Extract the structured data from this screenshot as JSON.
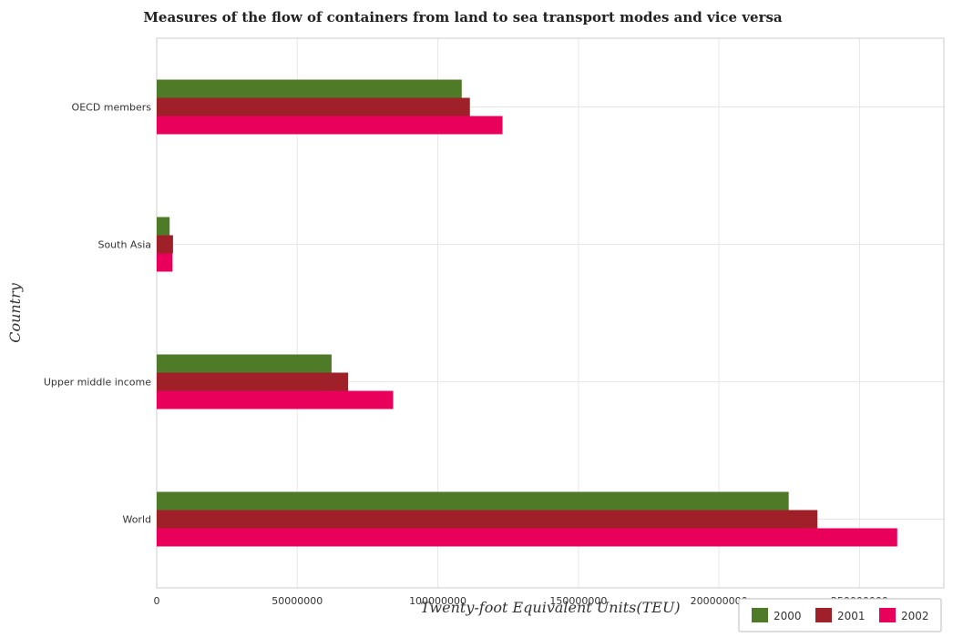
{
  "chart_data": {
    "type": "bar",
    "orientation": "horizontal",
    "title": "Measures of the flow of containers from land to sea transport modes and vice versa",
    "xlabel": "Twenty-foot Equivalent Units(TEU)",
    "ylabel": "Country",
    "categories": [
      "OECD members",
      "South Asia",
      "Upper middle income",
      "World"
    ],
    "series": [
      {
        "name": "2000",
        "color": "#4f7a28",
        "values": [
          108500000,
          4600000,
          62200000,
          224800000
        ]
      },
      {
        "name": "2001",
        "color": "#a0202a",
        "values": [
          111400000,
          5800000,
          68100000,
          235000000
        ]
      },
      {
        "name": "2002",
        "color": "#e8005a",
        "values": [
          123000000,
          5600000,
          84100000,
          263400000
        ]
      }
    ],
    "xlim": [
      0,
      280000000
    ],
    "xticks": [
      0,
      50000000,
      100000000,
      150000000,
      200000000,
      250000000
    ],
    "xtick_labels": [
      "0",
      "50000000",
      "100000000",
      "150000000",
      "200000000",
      "250000000"
    ],
    "grid": true,
    "legend_position": "bottom-right"
  }
}
